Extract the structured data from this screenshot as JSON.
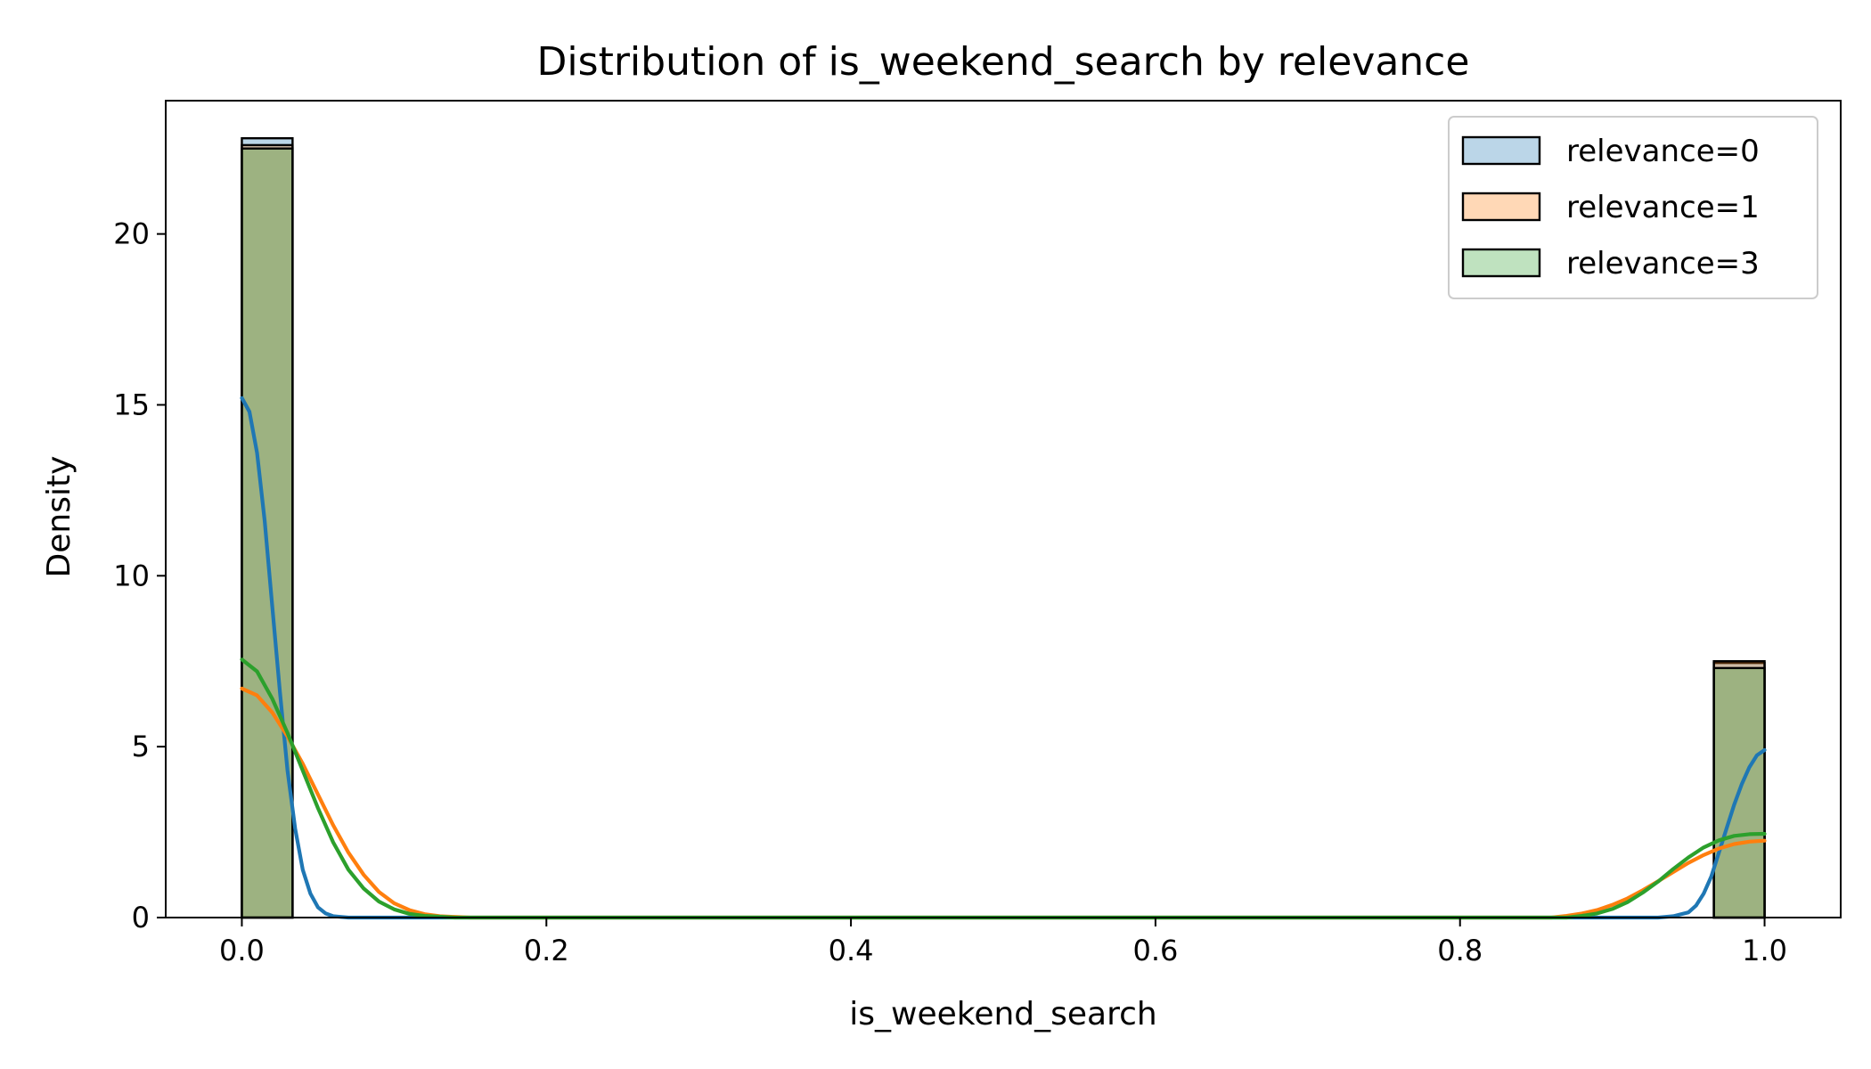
{
  "chart_data": {
    "type": "histogram",
    "title": "Distribution of is_weekend_search by relevance",
    "xlabel": "is_weekend_search",
    "ylabel": "Density",
    "xlim": [
      -0.05,
      1.05
    ],
    "ylim": [
      0,
      23.9
    ],
    "xticks": [
      0.0,
      0.2,
      0.4,
      0.6,
      0.8,
      1.0
    ],
    "xtick_labels": [
      "0.0",
      "0.2",
      "0.4",
      "0.6",
      "0.8",
      "1.0"
    ],
    "yticks": [
      0,
      5,
      10,
      15,
      20
    ],
    "ytick_labels": [
      "0",
      "5",
      "10",
      "15",
      "20"
    ],
    "bin_width": 0.0333,
    "legend_position": "upper right",
    "grid": false,
    "series": [
      {
        "name": "relevance=0",
        "color": "#1f77b4",
        "bars": [
          {
            "x0": 0.0,
            "x1": 0.0333,
            "density": 22.8
          },
          {
            "x0": 0.9667,
            "x1": 1.0,
            "density": 7.45
          }
        ],
        "kde": [
          [
            0.0,
            15.2
          ],
          [
            0.005,
            14.8
          ],
          [
            0.01,
            13.6
          ],
          [
            0.015,
            11.6
          ],
          [
            0.02,
            9.1
          ],
          [
            0.025,
            6.6
          ],
          [
            0.03,
            4.3
          ],
          [
            0.035,
            2.6
          ],
          [
            0.04,
            1.4
          ],
          [
            0.045,
            0.7
          ],
          [
            0.05,
            0.3
          ],
          [
            0.055,
            0.12
          ],
          [
            0.06,
            0.04
          ],
          [
            0.07,
            0.0
          ],
          [
            0.93,
            0.0
          ],
          [
            0.94,
            0.04
          ],
          [
            0.95,
            0.15
          ],
          [
            0.955,
            0.35
          ],
          [
            0.96,
            0.7
          ],
          [
            0.965,
            1.2
          ],
          [
            0.97,
            1.9
          ],
          [
            0.975,
            2.6
          ],
          [
            0.98,
            3.3
          ],
          [
            0.985,
            3.9
          ],
          [
            0.99,
            4.4
          ],
          [
            0.995,
            4.75
          ],
          [
            1.0,
            4.9
          ]
        ]
      },
      {
        "name": "relevance=1",
        "color": "#ff7f0e",
        "bars": [
          {
            "x0": 0.0,
            "x1": 0.0333,
            "density": 22.6
          },
          {
            "x0": 0.9667,
            "x1": 1.0,
            "density": 7.5
          }
        ],
        "kde": [
          [
            0.0,
            6.7
          ],
          [
            0.01,
            6.5
          ],
          [
            0.02,
            6.0
          ],
          [
            0.03,
            5.3
          ],
          [
            0.04,
            4.5
          ],
          [
            0.05,
            3.6
          ],
          [
            0.06,
            2.7
          ],
          [
            0.07,
            1.9
          ],
          [
            0.08,
            1.25
          ],
          [
            0.09,
            0.75
          ],
          [
            0.1,
            0.42
          ],
          [
            0.11,
            0.22
          ],
          [
            0.12,
            0.1
          ],
          [
            0.13,
            0.04
          ],
          [
            0.15,
            0.0
          ],
          [
            0.86,
            0.0
          ],
          [
            0.87,
            0.05
          ],
          [
            0.88,
            0.12
          ],
          [
            0.89,
            0.22
          ],
          [
            0.9,
            0.37
          ],
          [
            0.91,
            0.56
          ],
          [
            0.92,
            0.8
          ],
          [
            0.93,
            1.06
          ],
          [
            0.94,
            1.33
          ],
          [
            0.95,
            1.6
          ],
          [
            0.96,
            1.83
          ],
          [
            0.97,
            2.02
          ],
          [
            0.98,
            2.15
          ],
          [
            0.99,
            2.22
          ],
          [
            1.0,
            2.25
          ]
        ]
      },
      {
        "name": "relevance=3",
        "color": "#2ca02c",
        "bars": [
          {
            "x0": 0.0,
            "x1": 0.0333,
            "density": 22.5
          },
          {
            "x0": 0.9667,
            "x1": 1.0,
            "density": 7.3
          }
        ],
        "kde": [
          [
            0.0,
            7.55
          ],
          [
            0.01,
            7.2
          ],
          [
            0.02,
            6.4
          ],
          [
            0.03,
            5.4
          ],
          [
            0.04,
            4.3
          ],
          [
            0.05,
            3.2
          ],
          [
            0.06,
            2.2
          ],
          [
            0.07,
            1.4
          ],
          [
            0.08,
            0.85
          ],
          [
            0.09,
            0.47
          ],
          [
            0.1,
            0.24
          ],
          [
            0.11,
            0.11
          ],
          [
            0.12,
            0.05
          ],
          [
            0.14,
            0.0
          ],
          [
            0.87,
            0.0
          ],
          [
            0.88,
            0.05
          ],
          [
            0.89,
            0.12
          ],
          [
            0.9,
            0.25
          ],
          [
            0.91,
            0.45
          ],
          [
            0.92,
            0.73
          ],
          [
            0.93,
            1.05
          ],
          [
            0.94,
            1.42
          ],
          [
            0.95,
            1.76
          ],
          [
            0.96,
            2.05
          ],
          [
            0.97,
            2.26
          ],
          [
            0.98,
            2.39
          ],
          [
            0.99,
            2.44
          ],
          [
            1.0,
            2.45
          ]
        ]
      }
    ]
  }
}
